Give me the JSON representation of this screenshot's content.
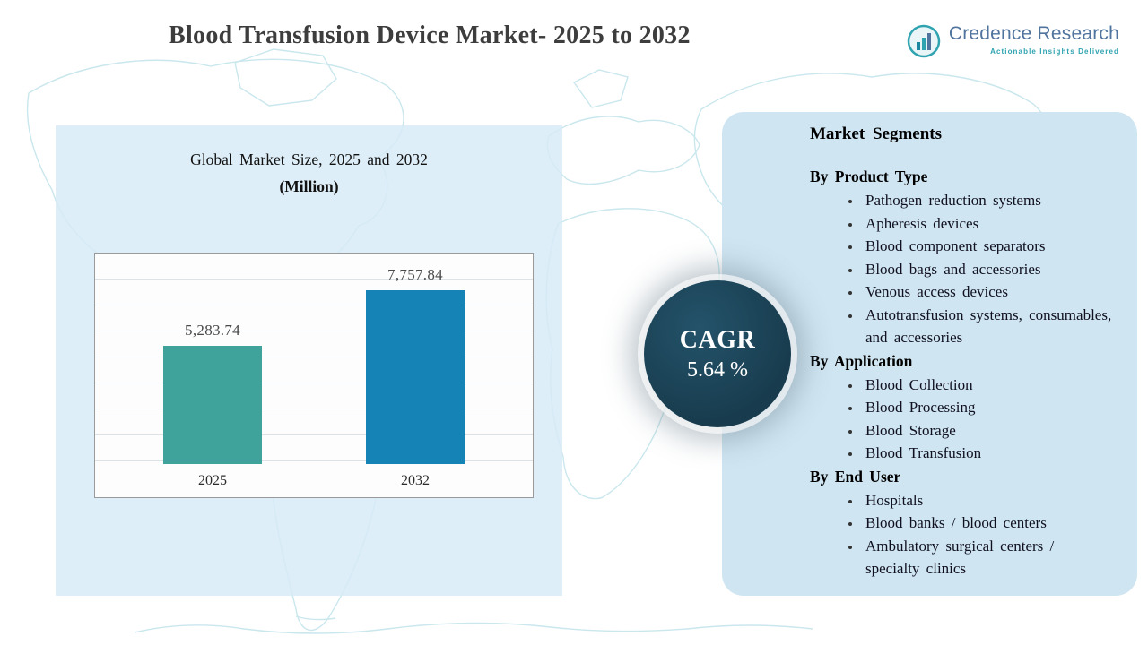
{
  "page": {
    "title": "Blood Transfusion Device Market- 2025 to 2032"
  },
  "logo": {
    "name": "Credence Research",
    "tagline": "Actionable Insights Delivered",
    "accent_color": "#2fa3b0",
    "name_color": "#51749e"
  },
  "chart_data": {
    "type": "bar",
    "title": "Global Market Size, 2025 and 2032",
    "subtitle": "(Million)",
    "categories": [
      "2025",
      "2032"
    ],
    "values": [
      5283.74,
      7757.84
    ],
    "value_labels": [
      "5,283.74",
      "7,757.84"
    ],
    "bar_colors": [
      "#3fa39c",
      "#1583b6"
    ],
    "xlabel": "",
    "ylabel": "",
    "ylim": [
      0,
      9500
    ],
    "grid": true,
    "legend": "none"
  },
  "cagr": {
    "label": "CAGR",
    "value": "5.64 %",
    "badge_color": "#183c4e"
  },
  "segments": {
    "title": "Market Segments",
    "groups": [
      {
        "heading": "By Product Type",
        "items": [
          "Pathogen reduction systems",
          "Apheresis devices",
          "Blood component separators",
          "Blood bags and accessories",
          "Venous access devices",
          "Autotransfusion systems, consumables, and accessories"
        ]
      },
      {
        "heading": "By Application",
        "items": [
          "Blood Collection",
          "Blood Processing",
          "Blood Storage",
          "Blood Transfusion"
        ]
      },
      {
        "heading": "By End User",
        "items": [
          "Hospitals",
          "Blood banks / blood centers",
          "Ambulatory surgical centers / specialty clinics"
        ]
      }
    ]
  }
}
